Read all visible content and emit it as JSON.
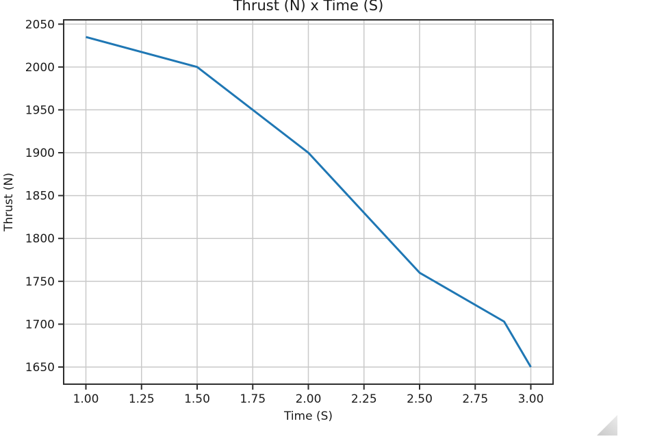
{
  "figure": {
    "title": "Thrust (N) x Time (S)"
  },
  "chart_data": {
    "type": "line",
    "title": "Thrust (N) x Time (S)",
    "xlabel": "Time (S)",
    "ylabel": "Thrust (N)",
    "series": [
      {
        "name": "thrust",
        "x": [
          1.0,
          1.5,
          2.0,
          2.5,
          2.88,
          3.0
        ],
        "y": [
          2035,
          2000,
          1900,
          1760,
          1703,
          1650
        ],
        "color": "#1f77b4",
        "line_width": 3
      }
    ],
    "xlim": [
      0.9,
      3.1
    ],
    "ylim": [
      1630,
      2055
    ],
    "xticks": [
      1.0,
      1.25,
      1.5,
      1.75,
      2.0,
      2.25,
      2.5,
      2.75,
      3.0
    ],
    "xtick_labels": [
      "1.00",
      "1.25",
      "1.50",
      "1.75",
      "2.00",
      "2.25",
      "2.50",
      "2.75",
      "3.00"
    ],
    "yticks": [
      1650,
      1700,
      1750,
      1800,
      1850,
      1900,
      1950,
      2000,
      2050
    ],
    "ytick_labels": [
      "1650",
      "1700",
      "1750",
      "1800",
      "1850",
      "1900",
      "1950",
      "2000",
      "2050"
    ],
    "grid": true,
    "legend": false,
    "colors": {
      "line": "#1f77b4",
      "grid": "#c9c9c9",
      "spine": "#2e2e2e",
      "text": "#1a1a1a",
      "background": "#ffffff"
    }
  },
  "icons": {
    "resize_grip": "diagonal-resize-triangle"
  }
}
